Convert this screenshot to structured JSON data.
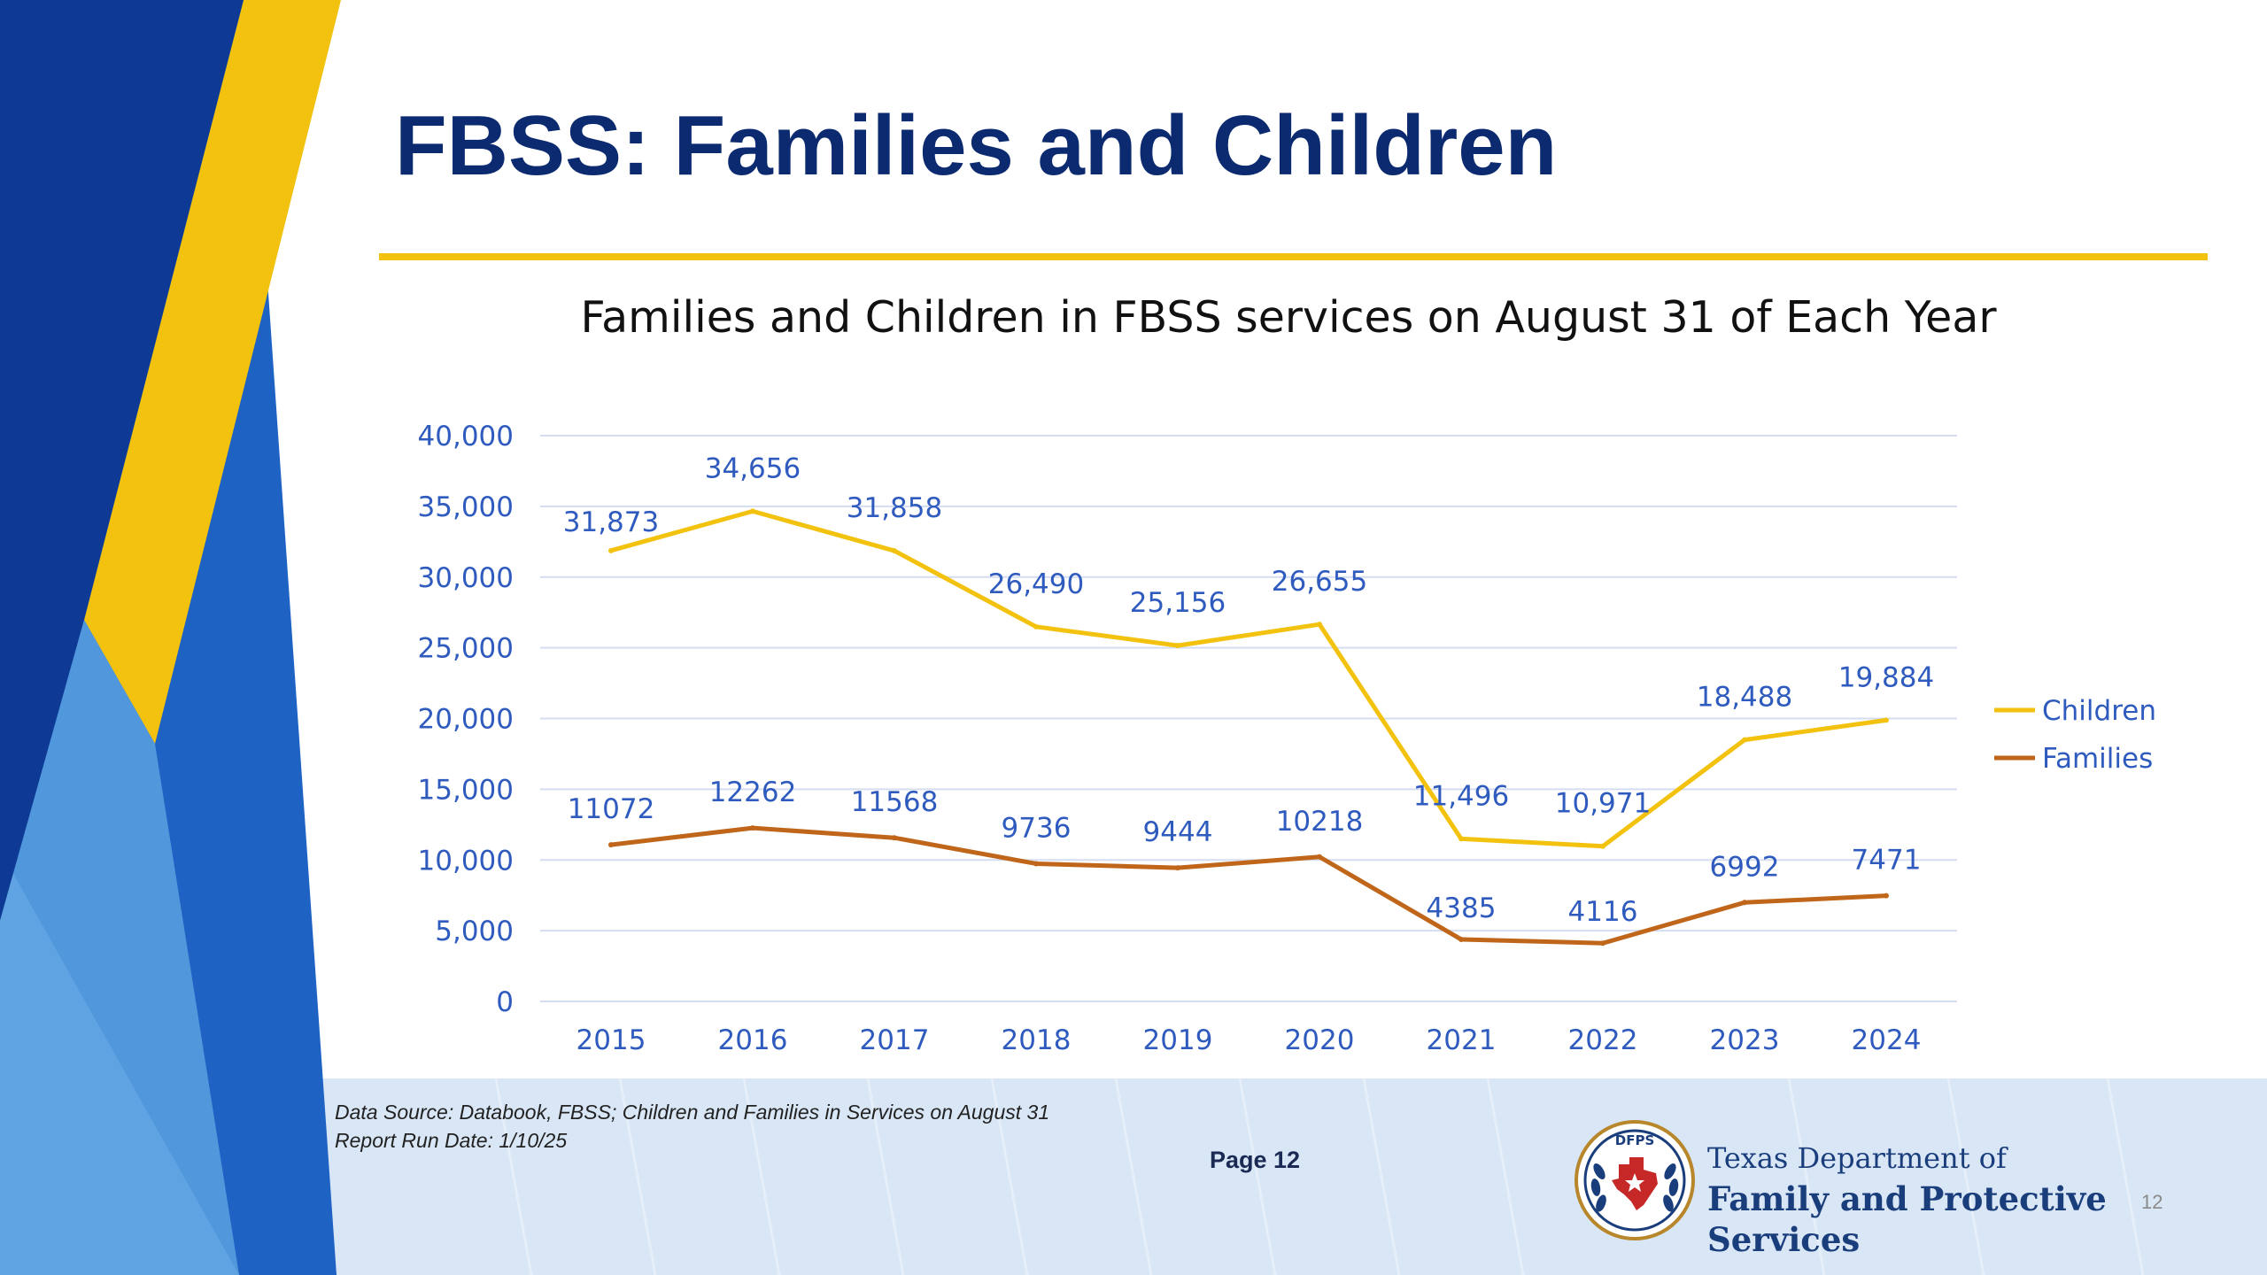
{
  "slide": {
    "title": "FBSS: Families and Children",
    "source_line1": "Data Source: Databook, FBSS; Children and Families in Services on August 31",
    "source_line2": "Report Run Date: 1/10/25",
    "page_label": "Page 12",
    "corner_number": "12"
  },
  "logo": {
    "seal_text": "DFPS",
    "line1": "Texas Department of",
    "line2": "Family and Protective Services"
  },
  "colors": {
    "title": "#0b2a6f",
    "accent_yellow": "#f2c20f",
    "children_line": "#f2c20f",
    "families_line": "#c0661a",
    "labels_blue": "#2f5bbf",
    "grid": "#d5ddf0"
  },
  "chart_data": {
    "type": "line",
    "title": "Families and Children in FBSS services on August 31 of Each Year",
    "categories": [
      "2015",
      "2016",
      "2017",
      "2018",
      "2019",
      "2020",
      "2021",
      "2022",
      "2023",
      "2024"
    ],
    "ylim": [
      0,
      40000
    ],
    "yticks": [
      0,
      5000,
      10000,
      15000,
      20000,
      25000,
      30000,
      35000,
      40000
    ],
    "ytick_labels": [
      "0",
      "5,000",
      "10,000",
      "15,000",
      "20,000",
      "25,000",
      "30,000",
      "35,000",
      "40,000"
    ],
    "grid": true,
    "legend_position": "right",
    "series": [
      {
        "name": "Children",
        "color": "#f2c20f",
        "values": [
          31873,
          34656,
          31858,
          26490,
          25156,
          26655,
          11496,
          10971,
          18488,
          19884
        ],
        "data_labels": [
          "31,873",
          "34,656",
          "31,858",
          "26,490",
          "25,156",
          "26,655",
          "11,496",
          "10,971",
          "18,488",
          "19,884"
        ]
      },
      {
        "name": "Families",
        "color": "#c0661a",
        "values": [
          11072,
          12262,
          11568,
          9736,
          9444,
          10218,
          4385,
          4116,
          6992,
          7471
        ],
        "data_labels": [
          "11072",
          "12262",
          "11568",
          "9736",
          "9444",
          "10218",
          "4385",
          "4116",
          "6992",
          "7471"
        ]
      }
    ]
  }
}
